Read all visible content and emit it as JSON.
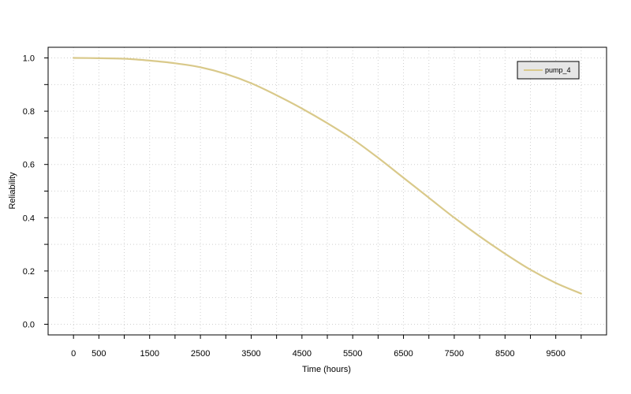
{
  "chart_data": {
    "type": "line",
    "title": "",
    "xlabel": "Time (hours)",
    "ylabel": "Reliability",
    "xlim": [
      -500,
      10500
    ],
    "ylim": [
      -0.04,
      1.04
    ],
    "x_tick_labels": [
      0,
      500,
      1500,
      2500,
      3500,
      4500,
      5500,
      6500,
      7500,
      8500,
      9500
    ],
    "x_minor_ticks": [
      1000,
      2000,
      3000,
      4000,
      5000,
      6000,
      7000,
      8000,
      9000,
      10000
    ],
    "y_tick_labels": [
      "0.0",
      "0.2",
      "0.4",
      "0.6",
      "0.8",
      "1.0"
    ],
    "y_ticks": [
      0.0,
      0.2,
      0.4,
      0.6,
      0.8,
      1.0
    ],
    "y_minor_ticks": [
      0.1,
      0.3,
      0.5,
      0.7,
      0.9
    ],
    "grid": true,
    "legend_position": "top-right",
    "series": [
      {
        "name": "pump_4",
        "color": "#d9c98a",
        "x": [
          0,
          500,
          1000,
          1500,
          2000,
          2500,
          3000,
          3500,
          4000,
          4500,
          5000,
          5500,
          6000,
          6500,
          7000,
          7500,
          8000,
          8500,
          9000,
          9500,
          10000
        ],
        "y": [
          1.0,
          0.999,
          0.997,
          0.99,
          0.98,
          0.965,
          0.94,
          0.905,
          0.86,
          0.81,
          0.755,
          0.695,
          0.625,
          0.55,
          0.475,
          0.4,
          0.33,
          0.265,
          0.205,
          0.155,
          0.115
        ]
      }
    ]
  }
}
